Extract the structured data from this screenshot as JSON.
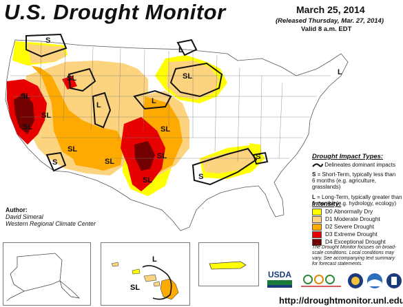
{
  "header": {
    "title": "U.S. Drought Monitor",
    "date": "March 25, 2014",
    "released": "(Released Thursday, Mar. 27, 2014)",
    "valid": "Valid 8 a.m. EDT"
  },
  "map_labels": [
    "S",
    "SL",
    "L",
    "SL",
    "SL",
    "L",
    "SL",
    "SL",
    "SL",
    "SL",
    "SL",
    "SL",
    "S",
    "L",
    "S",
    "S",
    "L",
    "SL"
  ],
  "impact_legend": {
    "title": "Drought Impact Types:",
    "line_desc": "Delineates dominant impacts",
    "short_term_key": "S",
    "short_term_desc": "= Short-Term, typically less than",
    "short_term_desc2": "6 months (e.g. agriculture, grasslands)",
    "long_term_key": "L",
    "long_term_desc": "= Long-Term, typically greater than",
    "long_term_desc2": "6 months (e.g. hydrology, ecology)"
  },
  "intensity_legend": {
    "title": "Intensity:",
    "items": [
      {
        "label": "D0 Abnormally Dry",
        "color": "#ffff00"
      },
      {
        "label": "D1 Moderate Drought",
        "color": "#fcd37f"
      },
      {
        "label": "D2 Severe Drought",
        "color": "#ffaa00"
      },
      {
        "label": "D3 Extreme Drought",
        "color": "#e60000"
      },
      {
        "label": "D4 Exceptional Drought",
        "color": "#730000"
      }
    ]
  },
  "author": {
    "label": "Author:",
    "name": "David Simeral",
    "org": "Western Regional Climate Center"
  },
  "note": "The Drought Monitor focuses on broad-scale conditions. Local conditions may vary. See accompanying text summary for forecast statements.",
  "logos": {
    "usda": "USDA",
    "ndmc": "National Drought Mitigation Center"
  },
  "url": "http://droughtmonitor.unl.edu/"
}
